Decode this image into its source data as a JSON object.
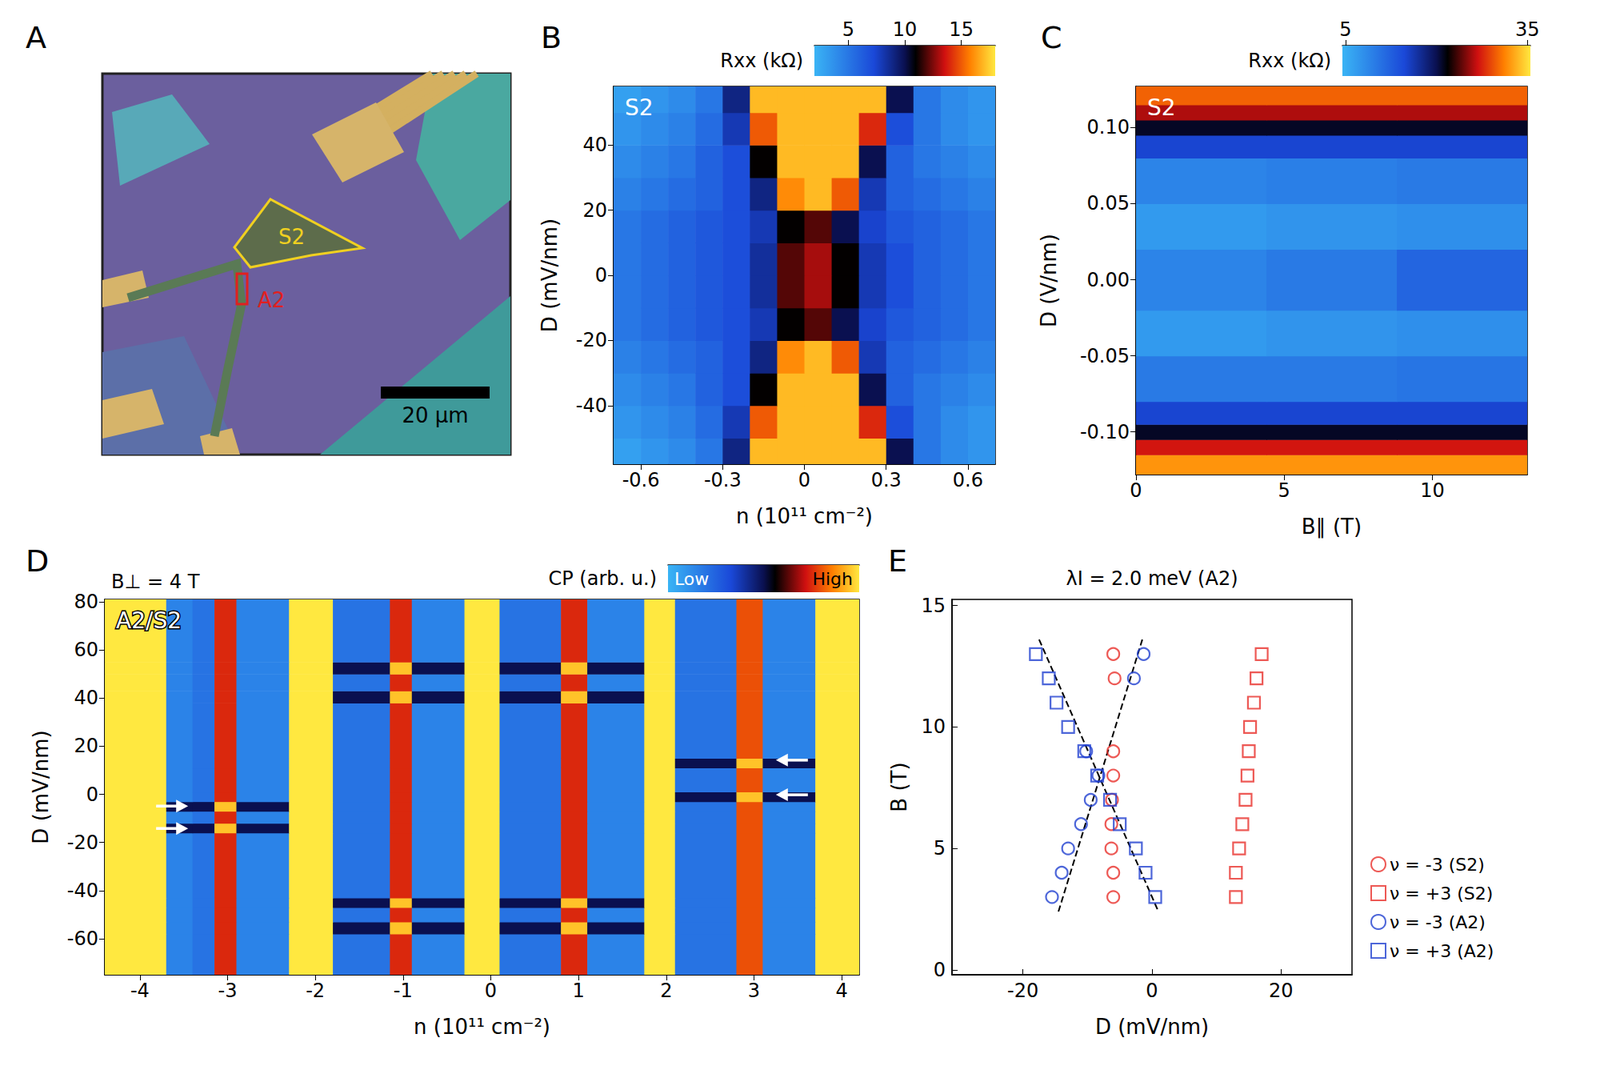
{
  "chart_data": [
    {
      "type": "micrograph",
      "panel_label": "A",
      "regions": [
        {
          "text": "S2",
          "color": "#f0d020"
        },
        {
          "text": "A2",
          "color": "#e02020"
        }
      ],
      "scale_bar": {
        "label": "20 μm"
      }
    },
    {
      "type": "heatmap",
      "panel_label": "B",
      "inset_label": "S2",
      "xlabel": "n (10¹¹ cm⁻²)",
      "ylabel": "D (mV/nm)",
      "xlim": [
        -0.7,
        0.7
      ],
      "xticks": [
        -0.6,
        -0.3,
        0,
        0.3,
        0.6
      ],
      "ylim": [
        -58,
        58
      ],
      "yticks": [
        -40,
        -20,
        0,
        20,
        40
      ],
      "x_edges": [
        -0.7,
        -0.6,
        -0.5,
        -0.4,
        -0.3,
        -0.2,
        -0.1,
        0,
        0.1,
        0.2,
        0.3,
        0.4,
        0.5,
        0.6,
        0.7
      ],
      "y_edges": [
        -58,
        -50,
        -40,
        -30,
        -20,
        -10,
        0,
        10,
        20,
        30,
        40,
        50,
        58
      ],
      "z": [
        [
          3,
          3.5,
          4,
          5,
          9,
          17,
          17,
          17,
          17,
          17,
          10,
          5,
          4,
          3.5
        ],
        [
          3.5,
          4,
          4.5,
          5.5,
          8,
          15,
          17,
          17,
          17,
          14,
          7,
          5,
          4,
          3.5
        ],
        [
          4,
          4.5,
          5,
          6,
          7,
          11,
          17,
          17,
          17,
          10,
          6,
          5,
          4.5,
          4
        ],
        [
          4.5,
          5,
          5.5,
          6,
          7,
          9,
          16,
          17,
          15,
          8,
          6,
          5.5,
          5,
          4.5
        ],
        [
          5,
          5.5,
          6,
          6.5,
          7,
          8,
          11,
          12,
          10,
          7.5,
          6.5,
          6,
          5.5,
          5
        ],
        [
          5,
          5.5,
          6,
          6.5,
          7,
          8.5,
          12,
          13,
          11,
          8,
          7,
          6,
          5.5,
          5
        ],
        [
          5,
          5.5,
          6,
          6.5,
          7,
          8.5,
          12,
          13,
          11,
          8,
          7,
          6,
          5.5,
          5
        ],
        [
          5,
          5.5,
          6,
          6.5,
          7,
          8,
          11,
          12,
          10,
          7.5,
          6.5,
          6,
          5.5,
          5
        ],
        [
          4.5,
          5,
          5.5,
          6,
          7,
          9,
          16,
          17,
          15,
          8,
          6,
          5.5,
          5,
          4.5
        ],
        [
          4,
          4.5,
          5,
          6,
          7,
          11,
          17,
          17,
          17,
          10,
          6,
          5,
          4.5,
          4
        ],
        [
          3.5,
          4,
          4.5,
          5.5,
          8,
          15,
          17,
          17,
          17,
          14,
          7,
          5,
          4,
          3.5
        ],
        [
          3,
          3.5,
          4,
          5,
          9,
          17,
          17,
          17,
          17,
          17,
          10,
          5,
          4,
          3.5
        ]
      ],
      "colorbar": {
        "label": "Rxx (kΩ)",
        "range": [
          2,
          18
        ],
        "ticks": [
          5,
          10,
          15
        ]
      }
    },
    {
      "type": "heatmap",
      "panel_label": "C",
      "inset_label": "S2",
      "xlabel": "B∥ (T)",
      "ylabel": "D (V/nm)",
      "xlim": [
        0,
        13.2
      ],
      "xticks": [
        0,
        5,
        10
      ],
      "ylim": [
        -0.128,
        0.127
      ],
      "yticks": [
        {
          "value": -0.1,
          "label": "-0.10"
        },
        {
          "value": -0.05,
          "label": "-0.05"
        },
        {
          "value": 0,
          "label": "0.00"
        },
        {
          "value": 0.05,
          "label": "0.05"
        },
        {
          "value": 0.1,
          "label": "0.10"
        }
      ],
      "x_edges": [
        0,
        4.4,
        8.8,
        13.2
      ],
      "y_edges": [
        -0.128,
        -0.115,
        -0.105,
        -0.095,
        -0.08,
        -0.05,
        -0.02,
        0.02,
        0.05,
        0.08,
        0.095,
        0.105,
        0.115,
        0.127
      ],
      "z": [
        [
          32,
          32,
          32
        ],
        [
          27,
          27,
          27
        ],
        [
          21,
          21,
          21
        ],
        [
          15,
          15,
          15
        ],
        [
          10,
          10,
          10.5
        ],
        [
          7,
          7.5,
          8
        ],
        [
          9,
          10,
          12
        ],
        [
          7,
          7.5,
          8
        ],
        [
          9,
          9.5,
          10
        ],
        [
          15,
          15,
          15
        ],
        [
          21,
          21,
          21
        ],
        [
          26,
          26,
          26
        ],
        [
          30,
          30,
          30
        ]
      ],
      "colorbar": {
        "label": "Rxx (kΩ)",
        "range": [
          4.5,
          35.5
        ],
        "ticks": [
          5,
          35
        ]
      }
    },
    {
      "type": "heatmap",
      "panel_label": "D",
      "title": "B⊥ = 4 T",
      "inset_label": "A2/S2",
      "xlabel": "n (10¹¹ cm⁻²)",
      "ylabel": "D (mV/nm)",
      "xlim": [
        -4.4,
        4.2
      ],
      "xticks": [
        -4,
        -3,
        -2,
        -1,
        0,
        1,
        2,
        3,
        4
      ],
      "ylim": [
        -75,
        81
      ],
      "yticks": [
        -60,
        -40,
        -20,
        0,
        20,
        40,
        60,
        80
      ],
      "x_edges": [
        -4.4,
        -3.7,
        -3.4,
        -3.15,
        -2.9,
        -2.3,
        -1.8,
        -1.15,
        -0.9,
        -0.3,
        0.1,
        0.8,
        1.1,
        1.75,
        2.1,
        2.8,
        3.1,
        3.7,
        4.2
      ],
      "y_edges": [
        -75,
        -58,
        -53,
        -47,
        -43,
        -16,
        -12,
        -7,
        -3,
        1,
        11,
        15,
        38,
        43,
        50,
        55,
        81
      ],
      "z": [
        [
          1,
          0.15,
          0.2,
          0.75,
          0.15,
          1,
          0.2,
          0.75,
          0.15,
          1,
          0.2,
          0.75,
          0.15,
          1,
          0.2,
          0.8,
          0.15,
          1
        ],
        [
          1,
          0.15,
          0.2,
          0.75,
          0.15,
          1,
          0.5,
          0.95,
          0.5,
          1,
          0.5,
          0.95,
          0.5,
          1,
          0.2,
          0.8,
          0.15,
          1
        ],
        [
          1,
          0.15,
          0.2,
          0.75,
          0.15,
          1,
          0.2,
          0.75,
          0.15,
          1,
          0.2,
          0.75,
          0.15,
          1,
          0.2,
          0.8,
          0.15,
          1
        ],
        [
          1,
          0.15,
          0.2,
          0.75,
          0.15,
          1,
          0.5,
          0.95,
          0.5,
          1,
          0.5,
          0.95,
          0.5,
          1,
          0.2,
          0.8,
          0.15,
          1
        ],
        [
          1,
          0.15,
          0.2,
          0.75,
          0.15,
          1,
          0.2,
          0.75,
          0.15,
          1,
          0.2,
          0.75,
          0.15,
          1,
          0.2,
          0.8,
          0.15,
          1
        ],
        [
          1,
          0.5,
          0.5,
          0.95,
          0.5,
          1,
          0.2,
          0.75,
          0.15,
          1,
          0.2,
          0.75,
          0.15,
          1,
          0.2,
          0.8,
          0.15,
          1
        ],
        [
          1,
          0.15,
          0.2,
          0.75,
          0.15,
          1,
          0.2,
          0.75,
          0.15,
          1,
          0.2,
          0.75,
          0.15,
          1,
          0.2,
          0.8,
          0.15,
          1
        ],
        [
          1,
          0.5,
          0.5,
          0.95,
          0.5,
          1,
          0.2,
          0.75,
          0.15,
          1,
          0.2,
          0.75,
          0.15,
          1,
          0.2,
          0.8,
          0.15,
          1
        ],
        [
          1,
          0.15,
          0.2,
          0.75,
          0.15,
          1,
          0.2,
          0.75,
          0.15,
          1,
          0.2,
          0.75,
          0.15,
          1,
          0.5,
          0.95,
          0.5,
          1
        ],
        [
          1,
          0.15,
          0.2,
          0.75,
          0.15,
          1,
          0.2,
          0.75,
          0.15,
          1,
          0.2,
          0.75,
          0.15,
          1,
          0.2,
          0.8,
          0.15,
          1
        ],
        [
          1,
          0.15,
          0.2,
          0.75,
          0.15,
          1,
          0.2,
          0.75,
          0.15,
          1,
          0.2,
          0.75,
          0.15,
          1,
          0.5,
          0.95,
          0.5,
          1
        ],
        [
          1,
          0.15,
          0.2,
          0.75,
          0.15,
          1,
          0.2,
          0.75,
          0.15,
          1,
          0.2,
          0.75,
          0.15,
          1,
          0.2,
          0.8,
          0.15,
          1
        ],
        [
          1,
          0.15,
          0.2,
          0.75,
          0.15,
          1,
          0.5,
          0.95,
          0.5,
          1,
          0.5,
          0.95,
          0.5,
          1,
          0.2,
          0.8,
          0.15,
          1
        ],
        [
          1,
          0.15,
          0.2,
          0.75,
          0.15,
          1,
          0.2,
          0.75,
          0.15,
          1,
          0.2,
          0.75,
          0.15,
          1,
          0.2,
          0.8,
          0.15,
          1
        ],
        [
          1,
          0.15,
          0.2,
          0.75,
          0.15,
          1,
          0.5,
          0.95,
          0.5,
          1,
          0.5,
          0.95,
          0.5,
          1,
          0.2,
          0.8,
          0.15,
          1
        ],
        [
          1,
          0.15,
          0.2,
          0.75,
          0.15,
          1,
          0.2,
          0.75,
          0.15,
          1,
          0.2,
          0.75,
          0.15,
          1,
          0.2,
          0.8,
          0.15,
          1
        ]
      ],
      "colorbar": {
        "label": "CP (arb. u.)",
        "range": [
          0,
          1
        ],
        "ticks": [
          {
            "value": 0,
            "label": "Low"
          },
          {
            "value": 1,
            "label": "High"
          }
        ]
      },
      "arrows": [
        {
          "x": -3.45,
          "y": -4.9,
          "direction": "right"
        },
        {
          "x": -3.45,
          "y": -14.2,
          "direction": "right"
        },
        {
          "x": 3.25,
          "y": 14.2,
          "direction": "left"
        },
        {
          "x": 3.25,
          "y": -0.2,
          "direction": "left"
        }
      ]
    },
    {
      "type": "scatter",
      "panel_label": "E",
      "title": "λI = 2.0 meV (A2)",
      "xlabel": "D (mV/nm)",
      "ylabel": "B (T)",
      "xlim": [
        -31,
        31
      ],
      "xticks": [
        -20,
        0,
        20
      ],
      "ylim": [
        -0.2,
        15.25
      ],
      "yticks": [
        0,
        5,
        10,
        15
      ],
      "legend": "right",
      "series": [
        {
          "name": "ν = -3 (S2)",
          "color": "#e8302a",
          "marker": "circle",
          "x": [
            -6,
            -5.8,
            -6,
            -6,
            -6.2,
            -6.3,
            -6.3,
            -6,
            -6
          ],
          "y": [
            13,
            12,
            9,
            8,
            7,
            6,
            5,
            4,
            3
          ]
        },
        {
          "name": "ν = +3 (S2)",
          "color": "#e8302a",
          "marker": "square",
          "x": [
            17,
            16.2,
            15.8,
            15.2,
            15,
            14.8,
            14.5,
            14,
            13.5,
            13,
            13
          ],
          "y": [
            13,
            12,
            11,
            10,
            9,
            8,
            7,
            6,
            5,
            4,
            3
          ]
        },
        {
          "name": "ν = -3 (A2)",
          "color": "#2040d0",
          "marker": "circle",
          "x": [
            -1.3,
            -2.8,
            -10.2,
            -8.3,
            -9.5,
            -11,
            -13,
            -14,
            -15.5
          ],
          "y": [
            13,
            12,
            9,
            8,
            7,
            6,
            5,
            4,
            3
          ]
        },
        {
          "name": "ν = +3 (A2)",
          "color": "#2040d0",
          "marker": "square",
          "x": [
            -18,
            -16,
            -14.8,
            -13,
            -10.5,
            -8.5,
            -6.5,
            -5,
            -2.5,
            -1,
            0.5
          ],
          "y": [
            13,
            12,
            11,
            10,
            9,
            8,
            7,
            6,
            5,
            4,
            3
          ]
        },
        {
          "type": "line",
          "color": "#000000",
          "line_style": "dashed",
          "x": [
            -17.5,
            1
          ],
          "y": [
            13.6,
            2.4
          ]
        },
        {
          "type": "line",
          "color": "#000000",
          "line_style": "dashed",
          "x": [
            -14.5,
            -1.5
          ],
          "y": [
            2.4,
            13.6
          ]
        }
      ]
    }
  ]
}
